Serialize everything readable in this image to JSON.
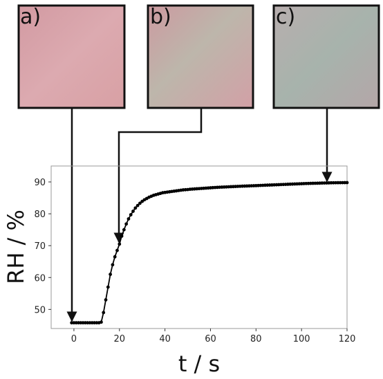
{
  "panels": [
    {
      "label": "a)",
      "t": 0,
      "tint": "pink"
    },
    {
      "label": "b)",
      "t": 20,
      "tint": "pink-green"
    },
    {
      "label": "c)",
      "t": 111,
      "tint": "grey-green"
    }
  ],
  "colors": {
    "line": "#000000",
    "frame": "#111111",
    "pink": "#d9a3a8",
    "pink_green": "#c9aea8",
    "grey_green": "#a9b1ab"
  },
  "chart_data": {
    "type": "line",
    "xlabel": "t / s",
    "ylabel": "RH / %",
    "xlim": [
      -10,
      120
    ],
    "ylim": [
      44,
      95
    ],
    "xticks": [
      0,
      20,
      40,
      60,
      80,
      100,
      120
    ],
    "yticks": [
      50,
      60,
      70,
      80,
      90
    ],
    "grid": false,
    "x": [
      -1,
      0,
      1,
      2,
      3,
      4,
      5,
      6,
      7,
      8,
      9,
      10,
      11,
      12,
      13,
      14,
      15,
      16,
      17,
      18,
      19,
      20,
      21,
      22,
      23,
      24,
      25,
      26,
      27,
      28,
      29,
      30,
      31,
      32,
      33,
      34,
      35,
      36,
      37,
      38,
      39,
      40,
      41,
      42,
      43,
      44,
      45,
      46,
      47,
      48,
      49,
      50,
      51,
      52,
      53,
      54,
      55,
      56,
      57,
      58,
      59,
      60,
      61,
      62,
      63,
      64,
      65,
      66,
      67,
      68,
      69,
      70,
      71,
      72,
      73,
      74,
      75,
      76,
      77,
      78,
      79,
      80,
      81,
      82,
      83,
      84,
      85,
      86,
      87,
      88,
      89,
      90,
      91,
      92,
      93,
      94,
      95,
      96,
      97,
      98,
      99,
      100,
      101,
      102,
      103,
      104,
      105,
      106,
      107,
      108,
      109,
      110,
      111,
      112,
      113,
      114,
      115,
      116,
      117,
      118,
      119,
      120
    ],
    "y": [
      45.8,
      45.8,
      45.8,
      45.8,
      45.8,
      45.8,
      45.8,
      45.8,
      45.8,
      45.8,
      45.8,
      45.8,
      45.8,
      46.0,
      49.0,
      53.0,
      57.0,
      61.0,
      64.0,
      66.5,
      68.5,
      70.5,
      73.0,
      75.0,
      76.8,
      78.4,
      79.7,
      80.8,
      81.8,
      82.6,
      83.3,
      83.9,
      84.4,
      84.8,
      85.2,
      85.5,
      85.8,
      86.0,
      86.2,
      86.4,
      86.6,
      86.7,
      86.8,
      86.9,
      87.0,
      87.1,
      87.2,
      87.3,
      87.4,
      87.5,
      87.55,
      87.6,
      87.7,
      87.75,
      87.8,
      87.85,
      87.9,
      87.95,
      88.0,
      88.05,
      88.1,
      88.15,
      88.2,
      88.25,
      88.3,
      88.33,
      88.37,
      88.4,
      88.43,
      88.47,
      88.5,
      88.53,
      88.57,
      88.6,
      88.63,
      88.66,
      88.69,
      88.72,
      88.75,
      88.78,
      88.81,
      88.84,
      88.87,
      88.9,
      88.93,
      88.96,
      88.99,
      89.02,
      89.05,
      89.08,
      89.11,
      89.14,
      89.17,
      89.2,
      89.23,
      89.26,
      89.29,
      89.32,
      89.35,
      89.38,
      89.41,
      89.44,
      89.47,
      89.5,
      89.52,
      89.54,
      89.56,
      89.58,
      89.6,
      89.62,
      89.64,
      89.66,
      89.68,
      89.7,
      89.72,
      89.73,
      89.74,
      89.75,
      89.76,
      89.77,
      89.78,
      89.79
    ]
  }
}
